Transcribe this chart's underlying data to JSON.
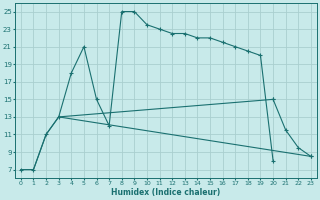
{
  "xlabel": "Humidex (Indice chaleur)",
  "background_color": "#c8eaea",
  "grid_color": "#aacfcf",
  "line_color": "#1a7070",
  "xlim": [
    -0.5,
    23.5
  ],
  "ylim": [
    6,
    26
  ],
  "xticks": [
    0,
    1,
    2,
    3,
    4,
    5,
    6,
    7,
    8,
    9,
    10,
    11,
    12,
    13,
    14,
    15,
    16,
    17,
    18,
    19,
    20,
    21,
    22,
    23
  ],
  "yticks": [
    7,
    9,
    11,
    13,
    15,
    17,
    19,
    21,
    23,
    25
  ],
  "series": [
    {
      "x": [
        0,
        1,
        2,
        3,
        4,
        5,
        6,
        7,
        8,
        9,
        10,
        11,
        12,
        13,
        14,
        15,
        16,
        17,
        18,
        19,
        20
      ],
      "y": [
        7,
        7,
        11,
        13,
        18,
        21,
        15,
        12,
        25,
        25,
        23.5,
        23,
        22.5,
        22.5,
        22,
        22,
        21.5,
        21,
        20.5,
        20,
        8
      ]
    },
    {
      "x": [
        0,
        1,
        2,
        3,
        20,
        21,
        22,
        23
      ],
      "y": [
        7,
        7,
        11,
        13,
        15,
        11.5,
        9.5,
        8.5
      ]
    },
    {
      "x": [
        0,
        1,
        2,
        3,
        23
      ],
      "y": [
        7,
        7,
        11,
        13,
        8.5
      ]
    }
  ]
}
